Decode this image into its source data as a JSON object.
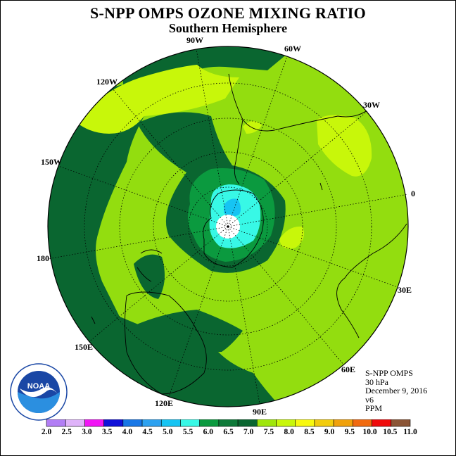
{
  "title": "S-NPP OMPS OZONE MIXING RATIO",
  "subtitle": "Southern Hemisphere",
  "longitude_labels": [
    {
      "id": "90W",
      "text": "90W"
    },
    {
      "id": "60W",
      "text": "60W"
    },
    {
      "id": "30W",
      "text": "30W"
    },
    {
      "id": "0",
      "text": "0"
    },
    {
      "id": "30E",
      "text": "30E"
    },
    {
      "id": "60E",
      "text": "60E"
    },
    {
      "id": "90E",
      "text": "90E"
    },
    {
      "id": "120E",
      "text": "120E"
    },
    {
      "id": "150E",
      "text": "150E"
    },
    {
      "id": "180",
      "text": "180"
    },
    {
      "id": "150W",
      "text": "150W"
    },
    {
      "id": "120W",
      "text": "120W"
    }
  ],
  "info": {
    "instrument": "S-NPP OMPS",
    "level": "30 hPa",
    "date": "December 9, 2016",
    "version": "v6",
    "units": "PPM"
  },
  "logo_text": "NOAA",
  "colorbar": {
    "labels": [
      "2.0",
      "2.5",
      "3.0",
      "3.5",
      "4.0",
      "4.5",
      "5.0",
      "5.5",
      "6.0",
      "6.5",
      "7.0",
      "7.5",
      "8.0",
      "8.5",
      "9.0",
      "9.5",
      "10.0",
      "10.5",
      "11.0"
    ],
    "colors": [
      "#b27ef5",
      "#dfb3f9",
      "#f114f5",
      "#1010d8",
      "#1877e6",
      "#2ea2f0",
      "#16c4f3",
      "#38f8e6",
      "#0b9a3f",
      "#0f7a39",
      "#0a6630",
      "#9fe60c",
      "#c8f70a",
      "#f8f90f",
      "#f2cc0d",
      "#f0a10b",
      "#f06a10",
      "#ef0b0b",
      "#8b5536"
    ]
  },
  "map_colors": {
    "level_6_5_7": "#0a6630",
    "level_6_6_5": "#0b9a3f",
    "level_7_7_5": "#93dd0f",
    "level_7_5_8": "#c8f70a",
    "level_5_5_6": "#38f8e6",
    "level_5_5_5": "#16c4f3",
    "pole": "#ffffff"
  }
}
